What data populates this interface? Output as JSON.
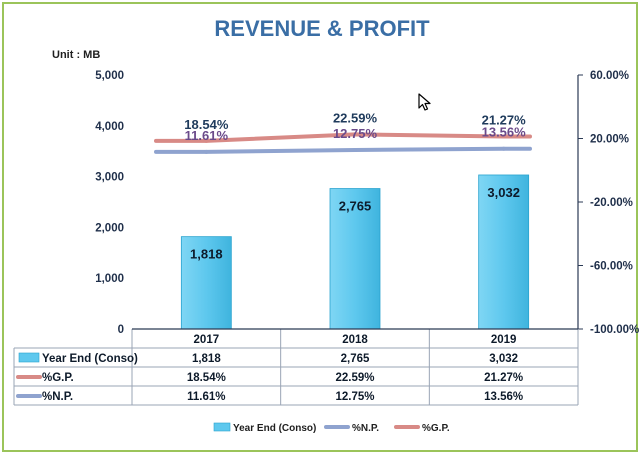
{
  "chart_data": {
    "type": "bar",
    "title": "REVENUE & PROFIT",
    "unit_label": "Unit : MB",
    "categories": [
      "2017",
      "2018",
      "2019"
    ],
    "ylim": [
      0,
      5000
    ],
    "y_ticks": [
      "5,000",
      "4,000",
      "3,000",
      "2,000",
      "1,000",
      "0"
    ],
    "y2lim": [
      -100,
      60
    ],
    "y2_ticks": [
      "60.00%",
      "20.00%",
      "-20.00%",
      "-60.00%",
      "-100.00%"
    ],
    "grid": false,
    "legend_position": "bottom",
    "series": [
      {
        "name": "Year End (Conso)",
        "kind": "bar",
        "axis": "left",
        "values": [
          1818,
          2765,
          3032
        ],
        "labels": [
          "1,818",
          "2,765",
          "3,032"
        ],
        "color": "#5ec8ee"
      },
      {
        "name": "%G.P.",
        "kind": "line",
        "axis": "right",
        "values": [
          18.54,
          22.59,
          21.27
        ],
        "labels": [
          "18.54%",
          "22.59%",
          "21.27%"
        ],
        "color": "#d88a86",
        "label_color": "#1f3b5c"
      },
      {
        "name": "%N.P.",
        "kind": "line",
        "axis": "right",
        "values": [
          11.61,
          12.75,
          13.56
        ],
        "labels": [
          "11.61%",
          "12.75%",
          "13.56%"
        ],
        "color": "#8fa3cf",
        "label_color": "#6a4a8a"
      }
    ],
    "table": {
      "rows": [
        {
          "name": "Year End (Conso)",
          "values": [
            "1,818",
            "2,765",
            "3,032"
          ]
        },
        {
          "name": "%G.P.",
          "values": [
            "18.54%",
            "22.59%",
            "21.27%"
          ]
        },
        {
          "name": "%N.P.",
          "values": [
            "11.61%",
            "12.75%",
            "13.56%"
          ]
        }
      ]
    },
    "legend_order": [
      "Year End (Conso)",
      "%N.P.",
      "%G.P."
    ],
    "title_color": "#3a6ea5"
  }
}
